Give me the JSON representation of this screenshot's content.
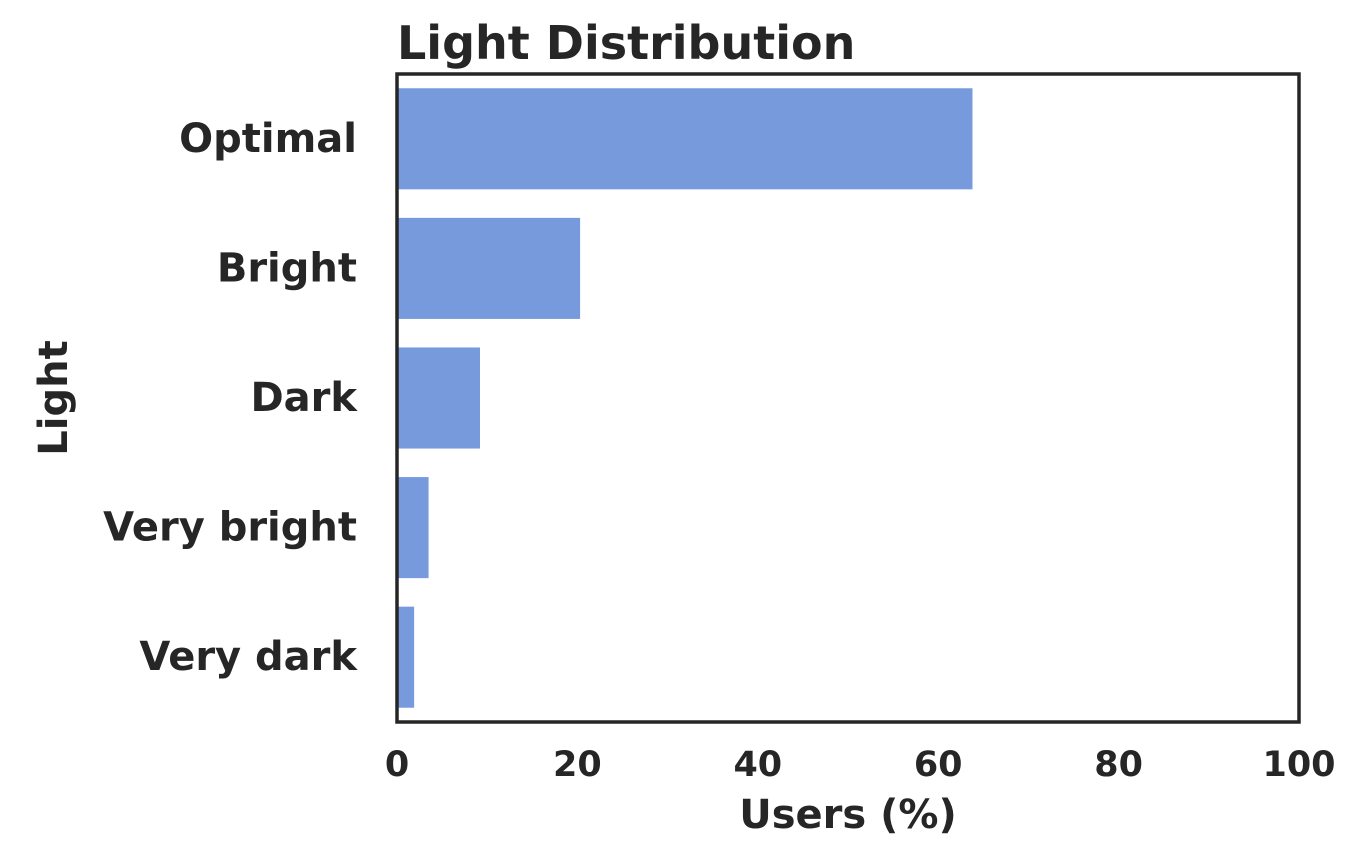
{
  "chart_data": {
    "type": "bar",
    "orientation": "horizontal",
    "title": "Light Distribution",
    "xlabel": "Users (%)",
    "ylabel": "Light",
    "categories": [
      "Optimal",
      "Bright",
      "Dark",
      "Very bright",
      "Very dark"
    ],
    "values": [
      63.8,
      20.3,
      9.2,
      3.5,
      1.9
    ],
    "xlim": [
      0,
      100
    ],
    "xticks": [
      "0",
      "20",
      "40",
      "60",
      "80",
      "100"
    ],
    "grid": false,
    "bar_color": "#779ADC",
    "frame_color": "#262626"
  }
}
